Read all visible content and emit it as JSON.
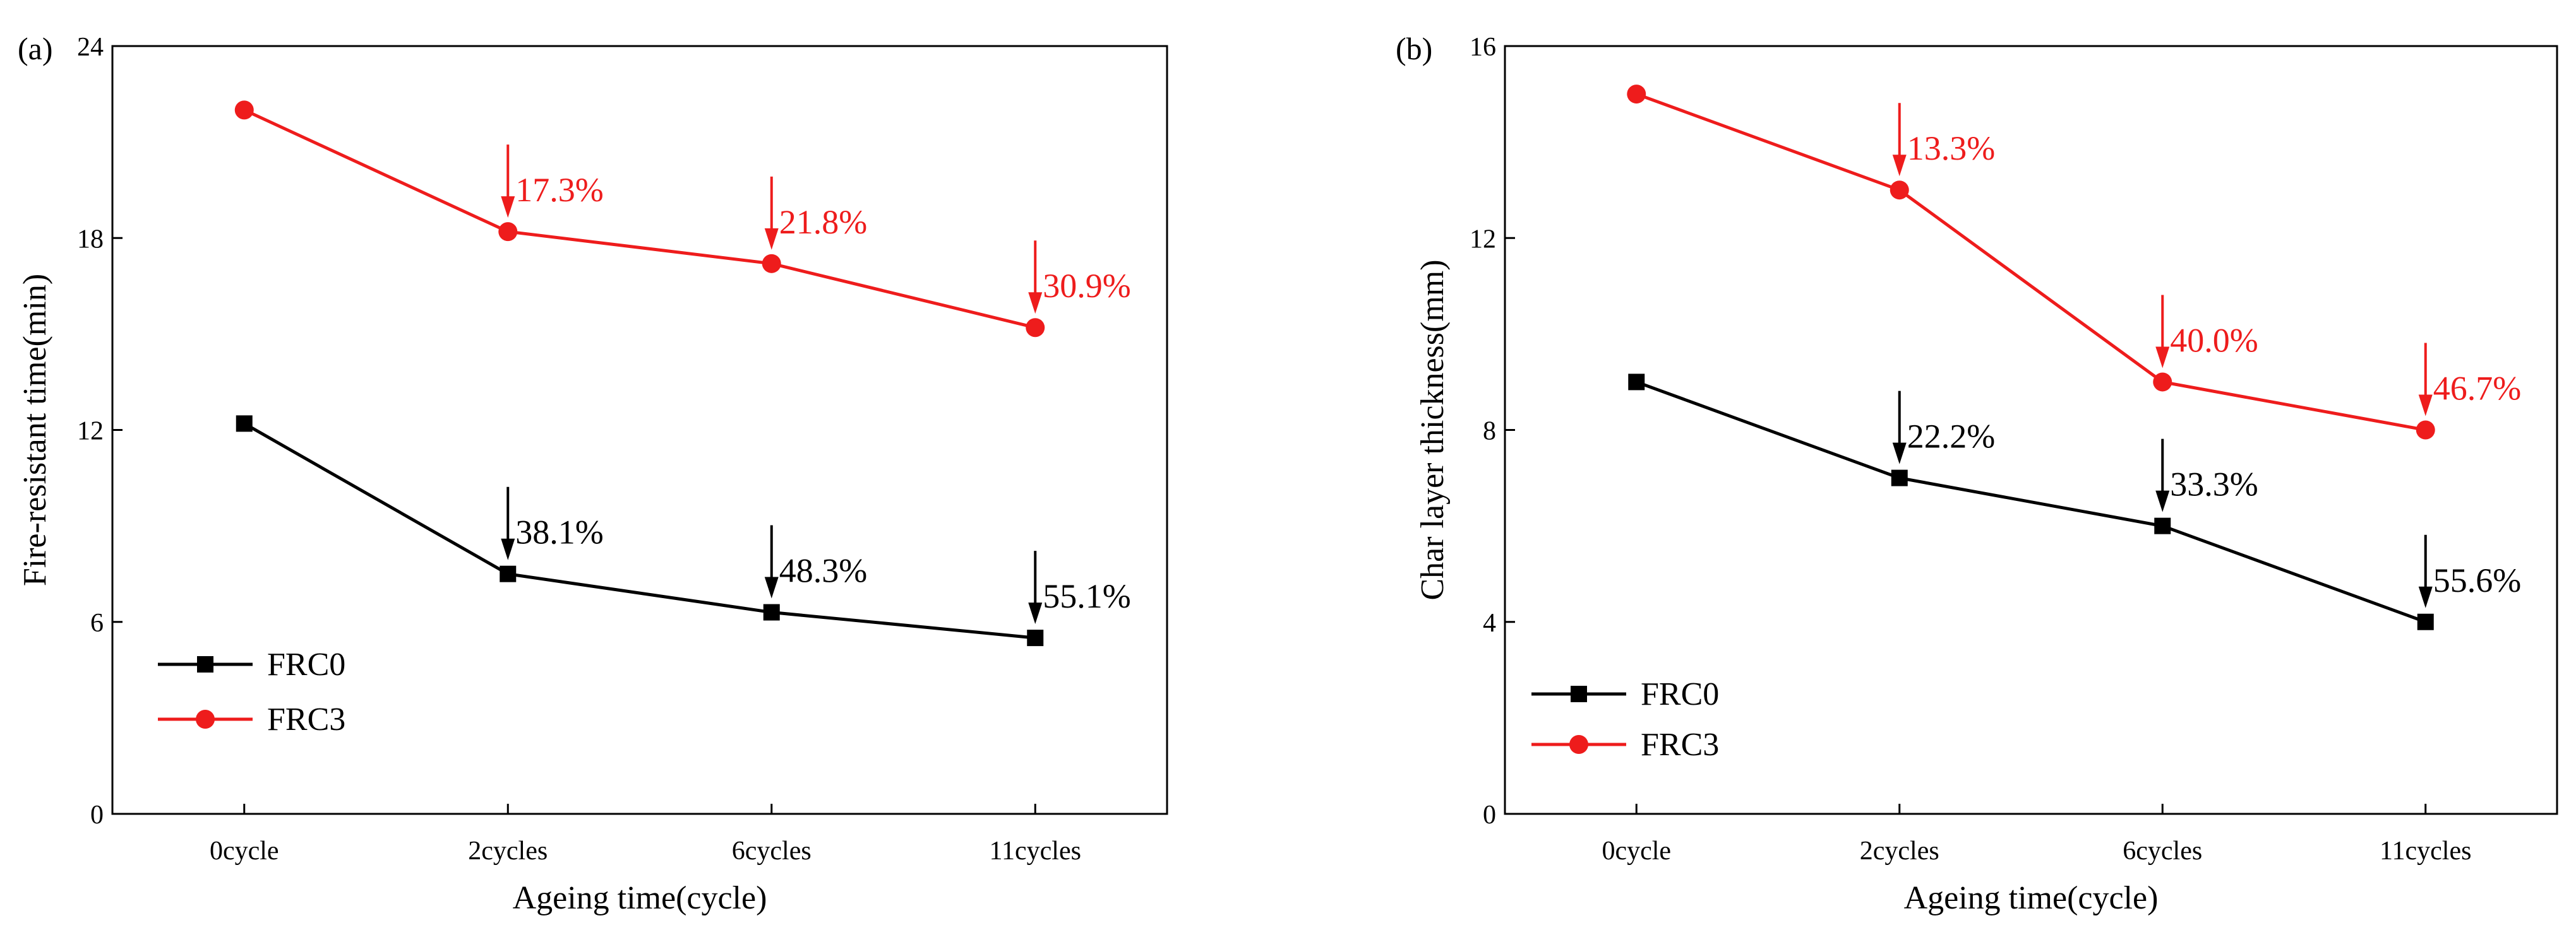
{
  "chart_data": [
    {
      "panel": "(a)",
      "type": "line",
      "categories": [
        "0cycle",
        "2cycles",
        "6cycles",
        "11cycles"
      ],
      "xlabel": "Ageing time(cycle)",
      "ylabel": "Fire-resistant time(min)",
      "ylim": [
        0,
        24
      ],
      "yticks": [
        "0",
        "6",
        "12",
        "18",
        "24"
      ],
      "grid": false,
      "legend_position": "bottom-left",
      "series": [
        {
          "name": "FRC0",
          "color": "#000000",
          "marker": "square",
          "values": [
            12.2,
            7.5,
            6.3,
            5.5
          ],
          "annotations": [
            "",
            "38.1%",
            "48.3%",
            "55.1%"
          ]
        },
        {
          "name": "FRC3",
          "color": "#ee1c1c",
          "marker": "circle",
          "values": [
            22.0,
            18.2,
            17.2,
            15.2
          ],
          "annotations": [
            "",
            "17.3%",
            "21.8%",
            "30.9%"
          ]
        }
      ]
    },
    {
      "panel": "(b)",
      "type": "line",
      "categories": [
        "0cycle",
        "2cycles",
        "6cycles",
        "11cycles"
      ],
      "xlabel": "Ageing time(cycle)",
      "ylabel": "Char layer thickness(mm)",
      "ylim": [
        0,
        16
      ],
      "yticks": [
        "0",
        "4",
        "8",
        "12",
        "16"
      ],
      "grid": false,
      "legend_position": "bottom-left",
      "series": [
        {
          "name": "FRC0",
          "color": "#000000",
          "marker": "square",
          "values": [
            9,
            7,
            6,
            4
          ],
          "annotations": [
            "",
            "22.2%",
            "33.3%",
            "55.6%"
          ]
        },
        {
          "name": "FRC3",
          "color": "#ee1c1c",
          "marker": "circle",
          "values": [
            15,
            13,
            9,
            8
          ],
          "annotations": [
            "",
            "13.3%",
            "40.0%",
            "46.7%"
          ]
        }
      ]
    }
  ]
}
